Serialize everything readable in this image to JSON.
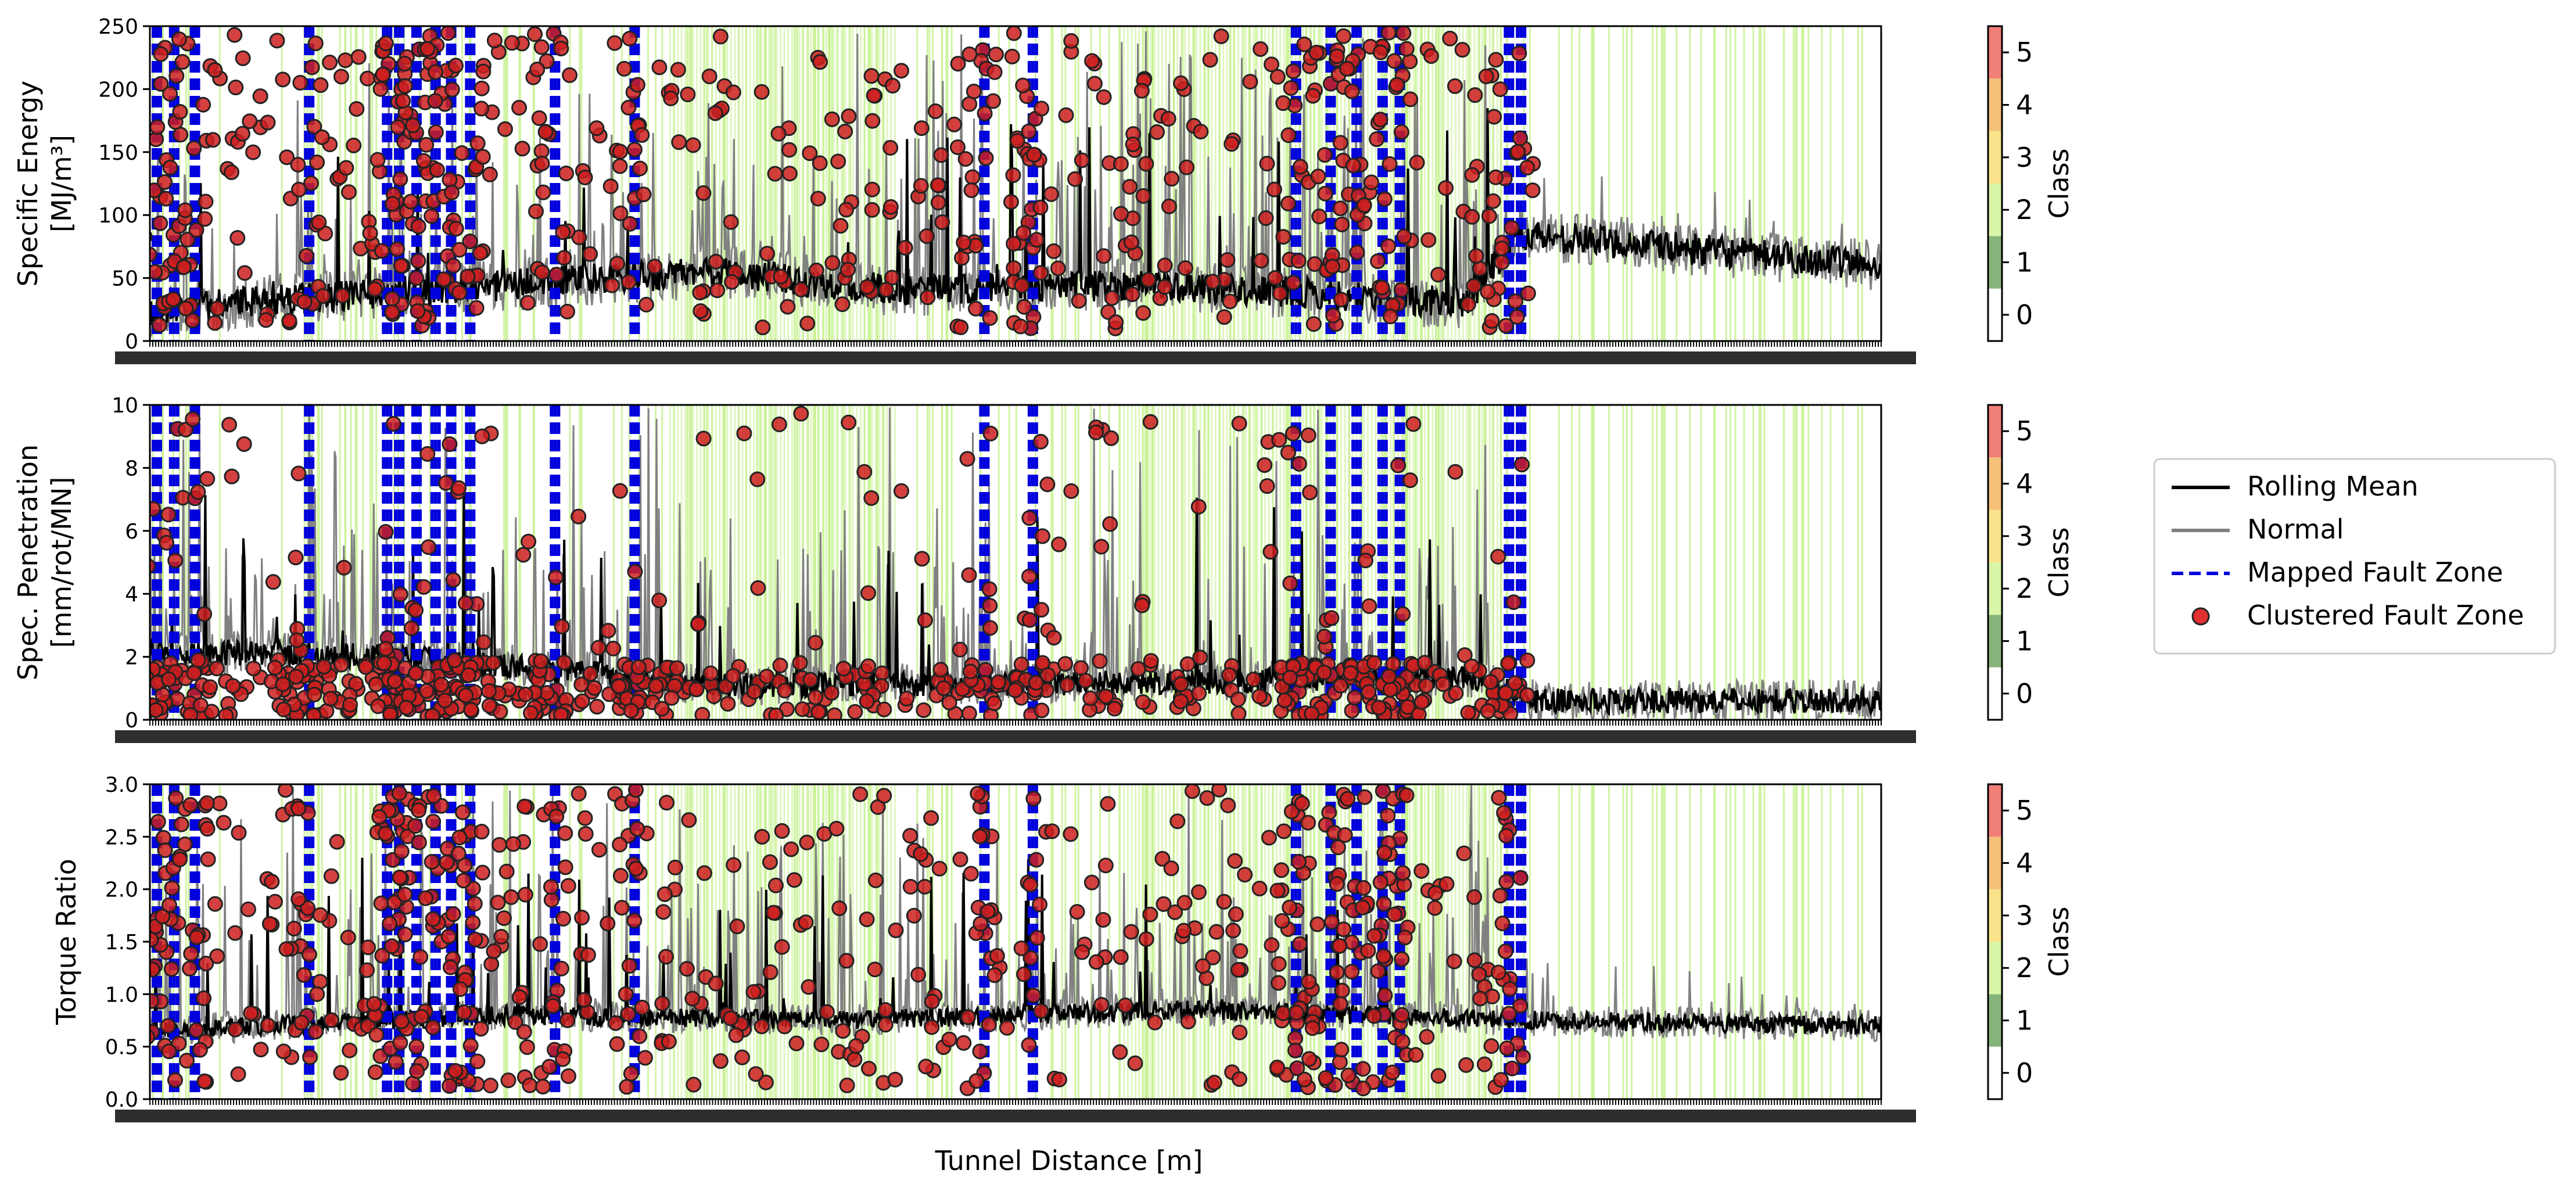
{
  "chart_data": {
    "type": "line",
    "xlabel": "Tunnel Distance [m]",
    "x_range": [
      0,
      1000
    ],
    "panels": [
      {
        "ylabel_lines": [
          "Specific Energy",
          "[MJ/m³]"
        ],
        "ylim": [
          0,
          250
        ],
        "yticks": [
          "0",
          "50",
          "100",
          "150",
          "200",
          "250"
        ],
        "ytick_values": [
          0,
          50,
          100,
          150,
          200,
          250
        ],
        "baseline": {
          "pattern": [
            [
              0,
              25
            ],
            [
              150,
              40
            ],
            [
              330,
              55
            ],
            [
              430,
              40
            ],
            [
              580,
              45
            ],
            [
              760,
              30
            ],
            [
              790,
              85
            ],
            [
              1000,
              60
            ]
          ],
          "noise": 14
        },
        "spikes_max": 250,
        "points_band": [
          10,
          245
        ]
      },
      {
        "ylabel_lines": [
          "Spec. Penetration",
          "[mm/rot/MN]"
        ],
        "ylim": [
          0,
          10
        ],
        "yticks": [
          "0",
          "2",
          "4",
          "6",
          "8",
          "10"
        ],
        "ytick_values": [
          0,
          2,
          4,
          6,
          8,
          10
        ],
        "baseline": {
          "pattern": [
            [
              0,
              2.2
            ],
            [
              150,
              2.0
            ],
            [
              330,
              1.1
            ],
            [
              600,
              1.2
            ],
            [
              760,
              1.4
            ],
            [
              800,
              0.6
            ],
            [
              1000,
              0.6
            ]
          ],
          "noise": 0.45
        },
        "spikes_max": 10,
        "points_band": [
          0.1,
          9.8
        ]
      },
      {
        "ylabel_lines": [
          "Torque Ratio"
        ],
        "ylim": [
          0,
          3.0
        ],
        "yticks": [
          "0.0",
          "0.5",
          "1.0",
          "1.5",
          "2.0",
          "2.5",
          "3.0"
        ],
        "ytick_values": [
          0,
          0.5,
          1.0,
          1.5,
          2.0,
          2.5,
          3.0
        ],
        "baseline": {
          "pattern": [
            [
              0,
              0.65
            ],
            [
              200,
              0.8
            ],
            [
              400,
              0.75
            ],
            [
              600,
              0.85
            ],
            [
              800,
              0.75
            ],
            [
              1000,
              0.7
            ]
          ],
          "noise": 0.1
        },
        "spikes_max": 3.0,
        "points_band": [
          0.1,
          2.95
        ]
      }
    ],
    "colorbar": {
      "label": "Class",
      "ticks": [
        "0",
        "1",
        "2",
        "3",
        "4",
        "5"
      ],
      "colors": [
        "#ffffff",
        "#86b37a",
        "#d9f5a8",
        "#f9e38a",
        "#f4c07a",
        "#ef7f77"
      ]
    },
    "mapped_fault_zones_x": [
      2,
      12,
      24,
      90,
      135,
      142,
      152,
      163,
      172,
      183,
      232,
      278,
      480,
      508,
      660,
      680,
      695,
      710,
      720,
      783,
      790
    ],
    "legend": {
      "position": "right",
      "entries": [
        {
          "label": "Rolling Mean",
          "kind": "line",
          "color": "#000000"
        },
        {
          "label": "Normal",
          "kind": "line",
          "color": "#808080"
        },
        {
          "label": "Mapped Fault Zone",
          "kind": "dashed",
          "color": "#0000dd"
        },
        {
          "label": "Clustered Fault Zone",
          "kind": "marker",
          "color": "#e03030"
        }
      ]
    },
    "class_shading_color": "#c6f18f",
    "grid": false
  }
}
